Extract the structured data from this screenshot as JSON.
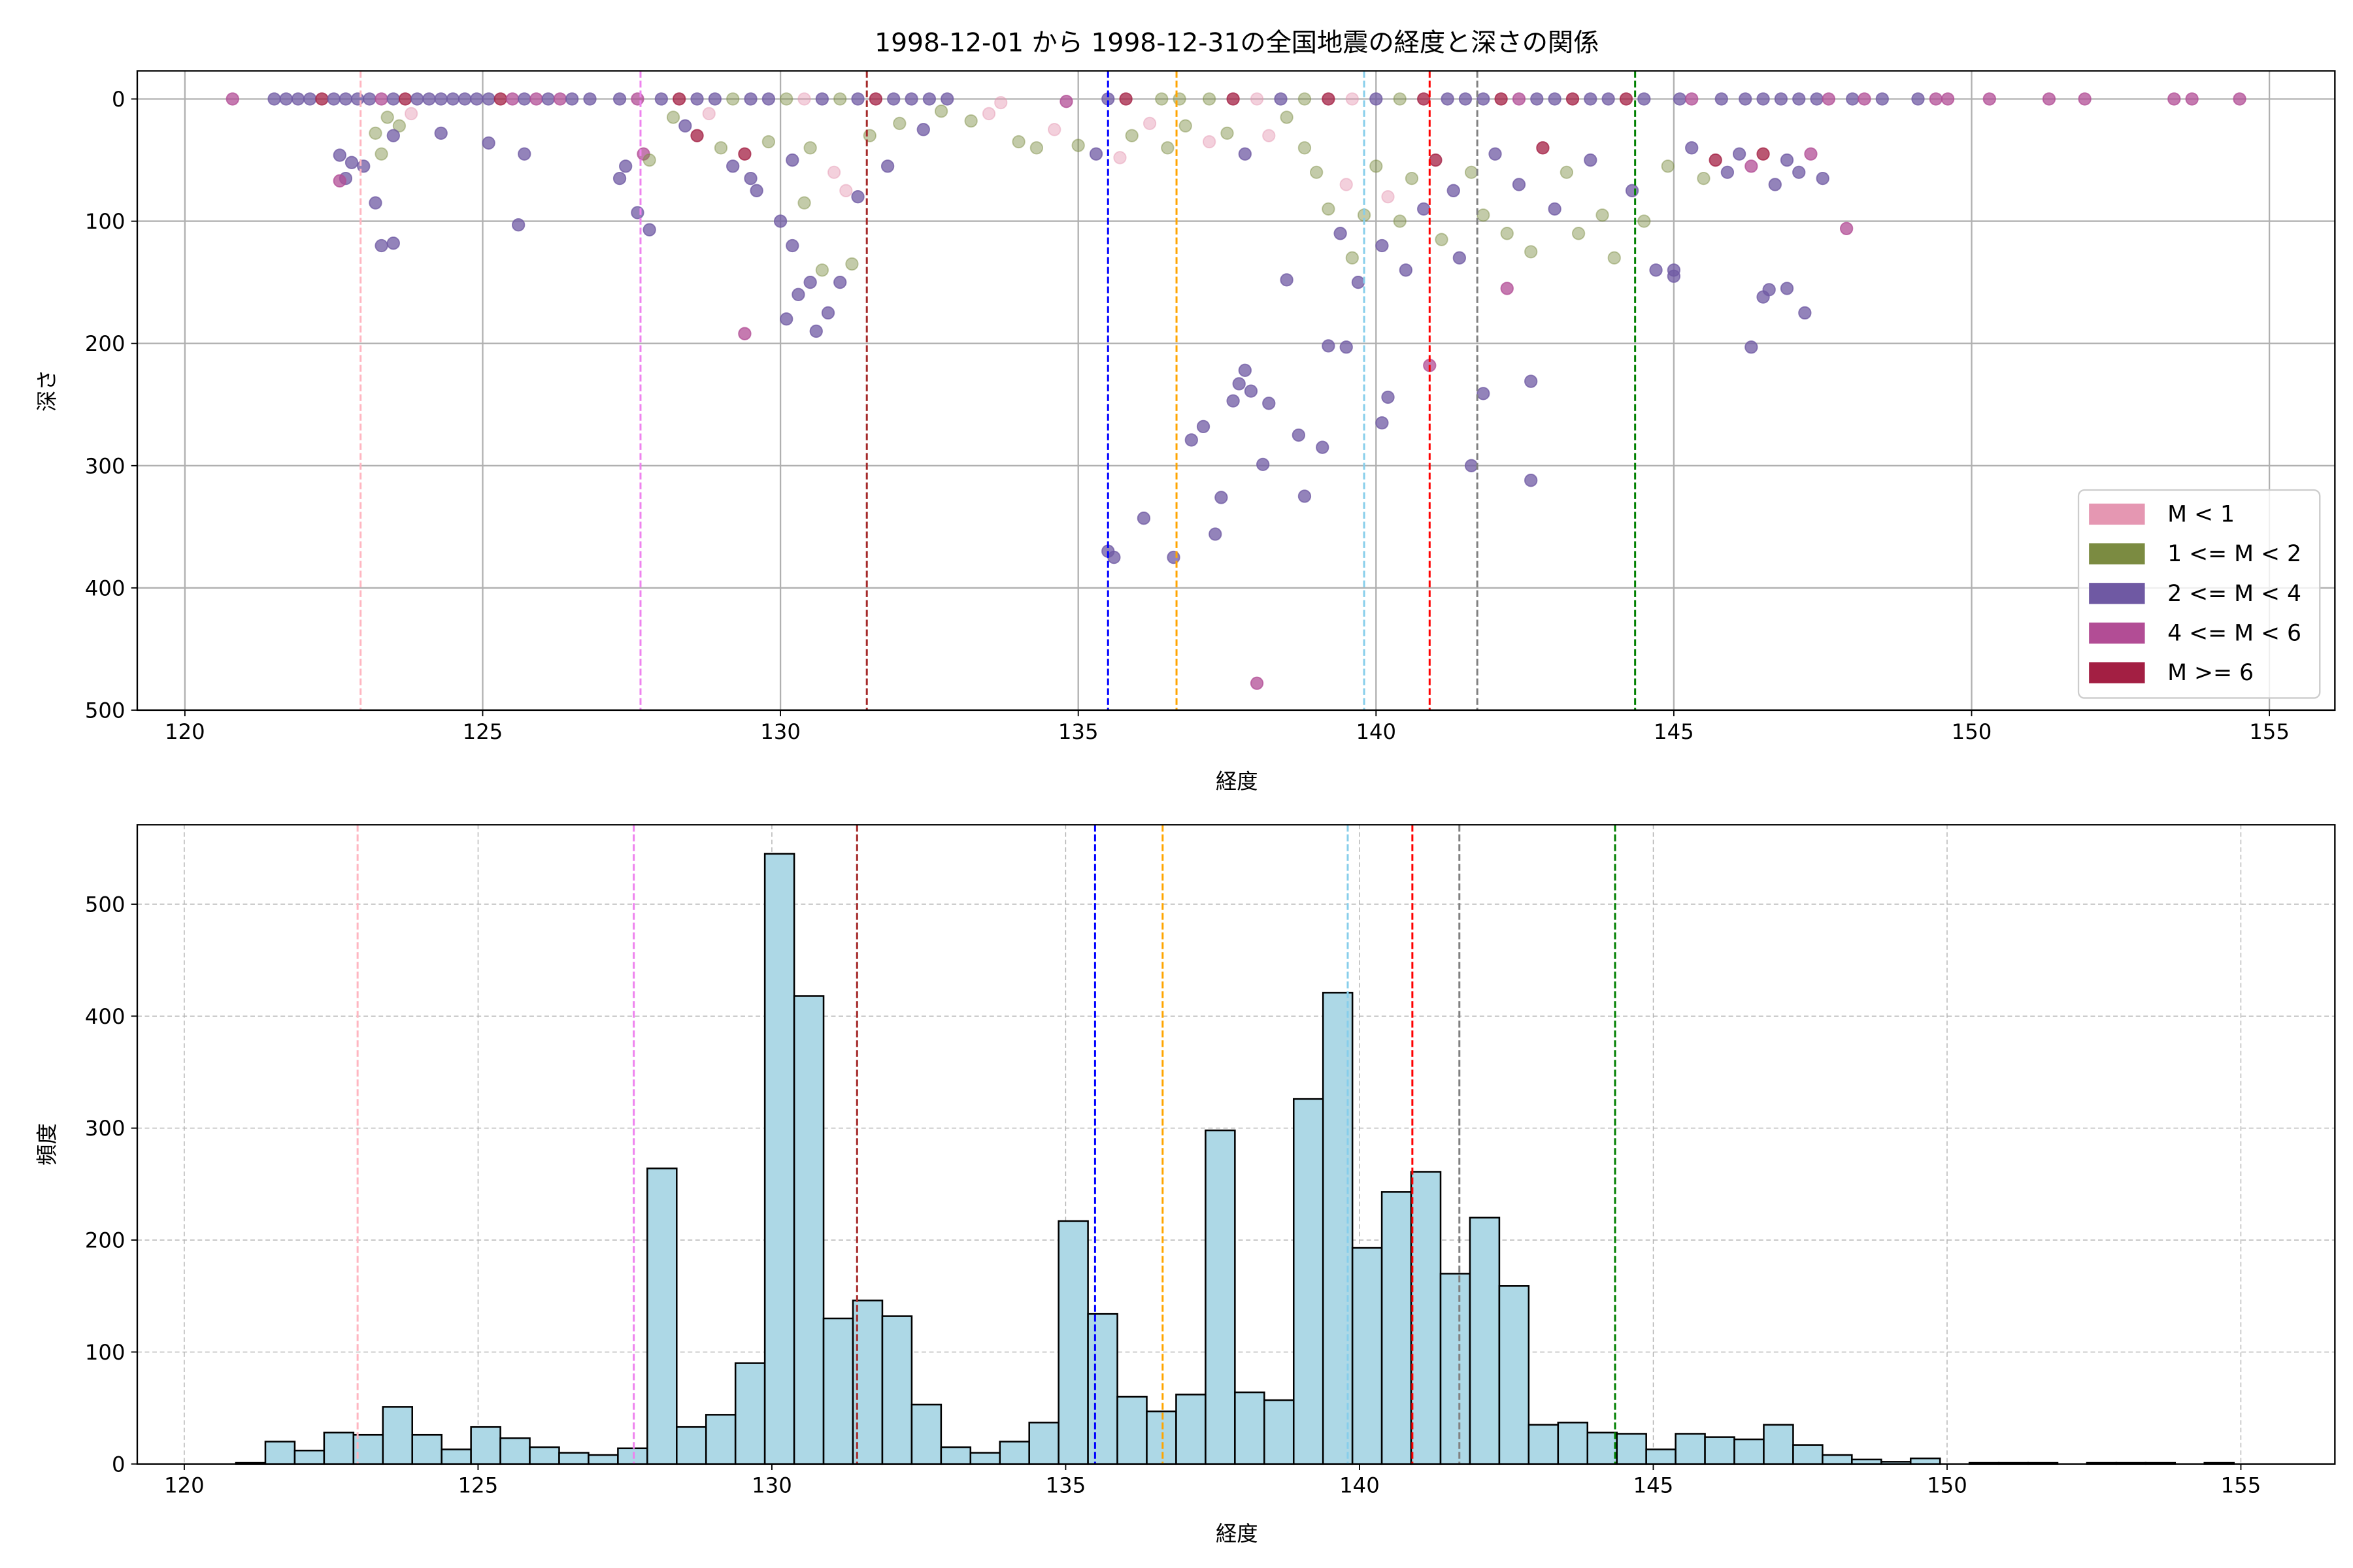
{
  "chart_data": [
    {
      "type": "scatter",
      "title": "1998-12-01 から 1998-12-31の全国地震の経度と深さの関係",
      "xlabel": "経度",
      "ylabel": "深さ",
      "xlim": [
        119.2,
        156.1
      ],
      "ylim": [
        500,
        -23
      ],
      "y_inverted": true,
      "xticks": [
        120,
        125,
        130,
        135,
        140,
        145,
        150,
        155
      ],
      "yticks": [
        0,
        100,
        200,
        300,
        400,
        500
      ],
      "grid": true,
      "legend_position": "bottom-right",
      "categories": [
        {
          "label": "M < 1",
          "color": "#e597b2"
        },
        {
          "label": "1 <= M < 2",
          "color": "#7b8b41"
        },
        {
          "label": "2 <= M < 4",
          "color": "#6f59a3"
        },
        {
          "label": "4 <= M < 6",
          "color": "#b24d95"
        },
        {
          "label": "M >= 6",
          "color": "#a31f43"
        }
      ],
      "vlines": [
        {
          "x": 122.95,
          "color": "#ffb6c1"
        },
        {
          "x": 127.65,
          "color": "#ee82ee"
        },
        {
          "x": 131.45,
          "color": "#a52a2a"
        },
        {
          "x": 135.5,
          "color": "#0000ff"
        },
        {
          "x": 136.65,
          "color": "#ffa500"
        },
        {
          "x": 139.8,
          "color": "#87ceeb"
        },
        {
          "x": 140.9,
          "color": "#ff0000"
        },
        {
          "x": 141.7,
          "color": "#808080"
        },
        {
          "x": 144.35,
          "color": "#008000"
        }
      ],
      "points": [
        [
          120.8,
          0,
          3
        ],
        [
          121.5,
          0,
          2
        ],
        [
          121.7,
          0,
          2
        ],
        [
          121.9,
          0,
          2
        ],
        [
          122.1,
          0,
          2
        ],
        [
          122.3,
          0,
          4
        ],
        [
          122.5,
          0,
          2
        ],
        [
          122.7,
          0,
          2
        ],
        [
          122.9,
          0,
          2
        ],
        [
          123.1,
          0,
          2
        ],
        [
          123.3,
          0,
          3
        ],
        [
          123.5,
          0,
          2
        ],
        [
          123.7,
          0,
          4
        ],
        [
          123.9,
          0,
          2
        ],
        [
          124.1,
          0,
          2
        ],
        [
          124.3,
          0,
          2
        ],
        [
          124.5,
          0,
          2
        ],
        [
          124.7,
          0,
          2
        ],
        [
          124.9,
          0,
          2
        ],
        [
          125.1,
          0,
          2
        ],
        [
          125.3,
          0,
          4
        ],
        [
          125.5,
          0,
          3
        ],
        [
          125.7,
          0,
          2
        ],
        [
          125.9,
          0,
          3
        ],
        [
          126.1,
          0,
          2
        ],
        [
          126.3,
          0,
          3
        ],
        [
          126.5,
          0,
          2
        ],
        [
          126.8,
          0,
          2
        ],
        [
          127.3,
          0,
          2
        ],
        [
          127.6,
          0,
          3
        ],
        [
          128.0,
          0,
          2
        ],
        [
          128.3,
          0,
          4
        ],
        [
          128.6,
          0,
          2
        ],
        [
          128.9,
          0,
          2
        ],
        [
          129.2,
          0,
          1
        ],
        [
          129.5,
          0,
          2
        ],
        [
          129.8,
          0,
          2
        ],
        [
          130.1,
          0,
          1
        ],
        [
          130.4,
          0,
          0
        ],
        [
          130.7,
          0,
          2
        ],
        [
          131.0,
          0,
          1
        ],
        [
          131.3,
          0,
          2
        ],
        [
          131.6,
          0,
          4
        ],
        [
          131.9,
          0,
          2
        ],
        [
          132.2,
          0,
          2
        ],
        [
          132.5,
          0,
          2
        ],
        [
          132.8,
          0,
          2
        ],
        [
          133.7,
          3,
          0
        ],
        [
          134.8,
          2,
          3
        ],
        [
          135.5,
          0,
          2
        ],
        [
          135.8,
          0,
          4
        ],
        [
          136.4,
          0,
          1
        ],
        [
          136.7,
          0,
          1
        ],
        [
          137.2,
          0,
          1
        ],
        [
          137.6,
          0,
          4
        ],
        [
          138.0,
          0,
          0
        ],
        [
          138.4,
          0,
          2
        ],
        [
          138.8,
          0,
          1
        ],
        [
          139.2,
          0,
          4
        ],
        [
          139.6,
          0,
          0
        ],
        [
          140.0,
          0,
          2
        ],
        [
          140.4,
          0,
          1
        ],
        [
          140.8,
          0,
          4
        ],
        [
          141.2,
          0,
          2
        ],
        [
          141.5,
          0,
          2
        ],
        [
          141.8,
          0,
          2
        ],
        [
          142.1,
          0,
          4
        ],
        [
          142.4,
          0,
          3
        ],
        [
          142.7,
          0,
          2
        ],
        [
          143.0,
          0,
          2
        ],
        [
          143.3,
          0,
          4
        ],
        [
          143.6,
          0,
          2
        ],
        [
          143.9,
          0,
          2
        ],
        [
          144.2,
          0,
          4
        ],
        [
          144.5,
          0,
          2
        ],
        [
          145.1,
          0,
          2
        ],
        [
          145.3,
          0,
          3
        ],
        [
          145.8,
          0,
          2
        ],
        [
          146.2,
          0,
          2
        ],
        [
          146.5,
          0,
          2
        ],
        [
          146.8,
          0,
          2
        ],
        [
          147.1,
          0,
          2
        ],
        [
          147.4,
          0,
          2
        ],
        [
          147.6,
          0,
          3
        ],
        [
          148.0,
          0,
          2
        ],
        [
          148.2,
          0,
          3
        ],
        [
          148.5,
          0,
          2
        ],
        [
          149.1,
          0,
          2
        ],
        [
          149.4,
          0,
          3
        ],
        [
          149.6,
          0,
          3
        ],
        [
          150.3,
          0,
          3
        ],
        [
          151.3,
          0,
          3
        ],
        [
          151.9,
          0,
          3
        ],
        [
          153.4,
          0,
          3
        ],
        [
          153.7,
          0,
          3
        ],
        [
          154.5,
          0,
          3
        ],
        [
          123.4,
          15,
          1
        ],
        [
          123.6,
          22,
          1
        ],
        [
          123.8,
          12,
          0
        ],
        [
          123.5,
          30,
          2
        ],
        [
          123.2,
          28,
          1
        ],
        [
          123.3,
          45,
          1
        ],
        [
          122.6,
          46,
          2
        ],
        [
          122.8,
          52,
          2
        ],
        [
          123.0,
          55,
          2
        ],
        [
          122.7,
          65,
          2
        ],
        [
          122.6,
          67,
          3
        ],
        [
          123.2,
          85,
          2
        ],
        [
          123.3,
          120,
          2
        ],
        [
          123.5,
          118,
          2
        ],
        [
          125.1,
          36,
          2
        ],
        [
          125.7,
          45,
          2
        ],
        [
          125.6,
          103,
          2
        ],
        [
          124.3,
          28,
          2
        ],
        [
          127.3,
          65,
          2
        ],
        [
          127.4,
          55,
          2
        ],
        [
          127.6,
          93,
          2
        ],
        [
          127.8,
          107,
          2
        ],
        [
          127.7,
          45,
          3
        ],
        [
          127.8,
          50,
          1
        ],
        [
          128.2,
          15,
          1
        ],
        [
          128.4,
          22,
          2
        ],
        [
          128.6,
          30,
          4
        ],
        [
          128.8,
          12,
          0
        ],
        [
          129.0,
          40,
          1
        ],
        [
          129.2,
          55,
          2
        ],
        [
          129.4,
          45,
          4
        ],
        [
          129.5,
          65,
          2
        ],
        [
          129.6,
          75,
          2
        ],
        [
          129.8,
          35,
          1
        ],
        [
          130.0,
          100,
          2
        ],
        [
          130.1,
          180,
          2
        ],
        [
          130.2,
          120,
          2
        ],
        [
          130.3,
          160,
          2
        ],
        [
          130.4,
          85,
          1
        ],
        [
          130.5,
          150,
          2
        ],
        [
          130.6,
          190,
          2
        ],
        [
          130.7,
          140,
          1
        ],
        [
          130.8,
          175,
          2
        ],
        [
          131.0,
          150,
          2
        ],
        [
          131.1,
          75,
          0
        ],
        [
          131.2,
          135,
          1
        ],
        [
          129.4,
          192,
          3
        ],
        [
          130.2,
          50,
          2
        ],
        [
          130.5,
          40,
          1
        ],
        [
          130.9,
          60,
          0
        ],
        [
          131.3,
          80,
          2
        ],
        [
          131.5,
          30,
          1
        ],
        [
          131.8,
          55,
          2
        ],
        [
          132.0,
          20,
          1
        ],
        [
          132.4,
          25,
          2
        ],
        [
          132.7,
          10,
          1
        ],
        [
          133.2,
          18,
          1
        ],
        [
          133.5,
          12,
          0
        ],
        [
          134.0,
          35,
          1
        ],
        [
          134.3,
          40,
          1
        ],
        [
          134.6,
          25,
          0
        ],
        [
          135.0,
          38,
          1
        ],
        [
          135.3,
          45,
          2
        ],
        [
          135.7,
          48,
          0
        ],
        [
          135.9,
          30,
          1
        ],
        [
          136.2,
          20,
          0
        ],
        [
          136.5,
          40,
          1
        ],
        [
          136.8,
          22,
          1
        ],
        [
          137.2,
          35,
          0
        ],
        [
          137.5,
          28,
          1
        ],
        [
          137.8,
          45,
          2
        ],
        [
          138.2,
          30,
          0
        ],
        [
          138.5,
          15,
          1
        ],
        [
          138.8,
          40,
          1
        ],
        [
          139.0,
          60,
          1
        ],
        [
          139.2,
          90,
          1
        ],
        [
          139.4,
          110,
          2
        ],
        [
          139.5,
          70,
          0
        ],
        [
          139.6,
          130,
          1
        ],
        [
          139.7,
          150,
          2
        ],
        [
          139.8,
          95,
          1
        ],
        [
          140.0,
          55,
          1
        ],
        [
          140.1,
          120,
          2
        ],
        [
          140.2,
          80,
          0
        ],
        [
          140.4,
          100,
          1
        ],
        [
          140.5,
          140,
          2
        ],
        [
          140.6,
          65,
          1
        ],
        [
          140.8,
          90,
          2
        ],
        [
          141.0,
          50,
          4
        ],
        [
          141.1,
          115,
          1
        ],
        [
          141.3,
          75,
          2
        ],
        [
          141.4,
          130,
          2
        ],
        [
          141.6,
          60,
          1
        ],
        [
          141.8,
          95,
          1
        ],
        [
          142.0,
          45,
          2
        ],
        [
          142.2,
          110,
          1
        ],
        [
          142.4,
          70,
          2
        ],
        [
          142.6,
          125,
          1
        ],
        [
          142.8,
          40,
          4
        ],
        [
          143.0,
          90,
          2
        ],
        [
          143.2,
          60,
          1
        ],
        [
          143.4,
          110,
          1
        ],
        [
          143.6,
          50,
          2
        ],
        [
          143.8,
          95,
          1
        ],
        [
          144.0,
          130,
          1
        ],
        [
          144.3,
          75,
          2
        ],
        [
          144.5,
          100,
          1
        ],
        [
          144.7,
          140,
          2
        ],
        [
          144.9,
          55,
          1
        ],
        [
          145.3,
          40,
          2
        ],
        [
          145.5,
          65,
          1
        ],
        [
          145.7,
          50,
          4
        ],
        [
          145.9,
          60,
          2
        ],
        [
          146.1,
          45,
          2
        ],
        [
          146.3,
          55,
          3
        ],
        [
          146.5,
          45,
          4
        ],
        [
          146.7,
          70,
          2
        ],
        [
          146.9,
          50,
          2
        ],
        [
          147.1,
          60,
          2
        ],
        [
          147.3,
          45,
          3
        ],
        [
          147.5,
          65,
          2
        ],
        [
          135.5,
          370,
          2
        ],
        [
          135.6,
          375,
          2
        ],
        [
          136.1,
          343,
          2
        ],
        [
          136.6,
          375,
          2
        ],
        [
          136.9,
          279,
          2
        ],
        [
          137.1,
          268,
          2
        ],
        [
          137.3,
          356,
          2
        ],
        [
          137.4,
          326,
          2
        ],
        [
          137.6,
          247,
          2
        ],
        [
          137.7,
          233,
          2
        ],
        [
          137.8,
          222,
          2
        ],
        [
          137.9,
          239,
          2
        ],
        [
          138.1,
          299,
          2
        ],
        [
          138.2,
          249,
          2
        ],
        [
          138.7,
          275,
          2
        ],
        [
          138.8,
          325,
          2
        ],
        [
          139.1,
          285,
          2
        ],
        [
          138.0,
          478,
          3
        ],
        [
          138.5,
          148,
          2
        ],
        [
          139.2,
          202,
          2
        ],
        [
          139.5,
          203,
          2
        ],
        [
          140.2,
          244,
          2
        ],
        [
          140.1,
          265,
          2
        ],
        [
          140.9,
          218,
          3
        ],
        [
          141.6,
          300,
          2
        ],
        [
          141.8,
          241,
          2
        ],
        [
          142.6,
          312,
          2
        ],
        [
          142.6,
          231,
          2
        ],
        [
          142.2,
          155,
          3
        ],
        [
          146.3,
          203,
          2
        ],
        [
          146.5,
          162,
          2
        ],
        [
          146.6,
          156,
          2
        ],
        [
          146.9,
          155,
          2
        ],
        [
          147.2,
          175,
          2
        ],
        [
          147.9,
          106,
          3
        ],
        [
          145.0,
          145,
          2
        ],
        [
          145.0,
          140,
          2
        ]
      ]
    },
    {
      "type": "bar",
      "subtype": "histogram",
      "xlabel": "経度",
      "ylabel": "頻度",
      "xlim": [
        119.2,
        156.6
      ],
      "ylim": [
        0,
        571
      ],
      "xticks": [
        120,
        125,
        130,
        135,
        140,
        145,
        150,
        155
      ],
      "yticks": [
        0,
        100,
        200,
        300,
        400,
        500
      ],
      "grid": true,
      "bar_color": "#add8e6",
      "edge_color": "#000000",
      "bin_start": 120.88,
      "bin_width": 0.5,
      "values": [
        1,
        20,
        12,
        28,
        26,
        51,
        26,
        13,
        33,
        23,
        15,
        10,
        8,
        14,
        264,
        33,
        44,
        90,
        545,
        418,
        130,
        146,
        132,
        53,
        15,
        10,
        20,
        37,
        217,
        134,
        60,
        47,
        62,
        298,
        64,
        57,
        326,
        421,
        193,
        243,
        261,
        170,
        220,
        159,
        35,
        37,
        28,
        27,
        13,
        27,
        24,
        22,
        35,
        17,
        8,
        4,
        2,
        5,
        0,
        1,
        1,
        1,
        0,
        1,
        1,
        1,
        0,
        1
      ]
    }
  ]
}
